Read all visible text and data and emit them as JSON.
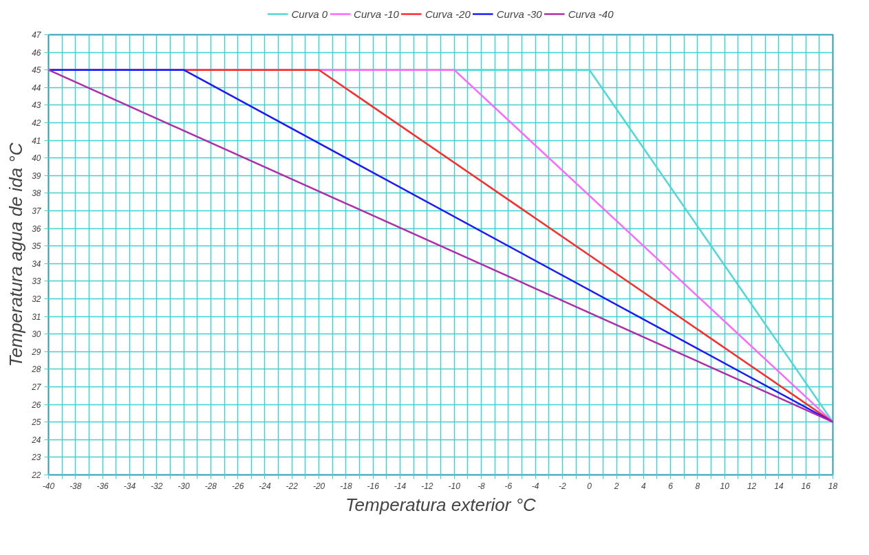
{
  "chart_data": {
    "type": "line",
    "xlabel": "Temperatura exterior °C",
    "ylabel": "Temperatura agua de ida °C",
    "series": [
      {
        "name": "Curva 0",
        "color": "#4fd8d8",
        "x": [
          -40,
          0,
          18
        ],
        "values": [
          45,
          45,
          25
        ]
      },
      {
        "name": "Curva -10",
        "color": "#ff66ff",
        "x": [
          -40,
          -10,
          18
        ],
        "values": [
          45,
          45,
          25
        ]
      },
      {
        "name": "Curva -20",
        "color": "#ff2a2a",
        "x": [
          -40,
          -20,
          18
        ],
        "values": [
          45,
          45,
          25
        ]
      },
      {
        "name": "Curva -30",
        "color": "#1a1aff",
        "x": [
          -40,
          -30,
          18
        ],
        "values": [
          45,
          45,
          25
        ]
      },
      {
        "name": "Curva -40",
        "color": "#b02ca8",
        "x": [
          -40,
          18
        ],
        "values": [
          45,
          25
        ]
      }
    ],
    "xlim": [
      -40,
      18
    ],
    "ylim": [
      22,
      47
    ],
    "xticks": [
      -40,
      {
        "value": -39,
        "label": null
      },
      -38,
      {
        "value": -37,
        "label": null
      },
      -36,
      {
        "value": -35,
        "label": null
      },
      -34,
      {
        "value": -33,
        "label": null
      },
      -32,
      {
        "value": -31,
        "label": null
      },
      -30,
      {
        "value": -29,
        "label": null
      },
      -28,
      {
        "value": -27,
        "label": null
      },
      -26,
      {
        "value": -25,
        "label": null
      },
      -24,
      {
        "value": -23,
        "label": null
      },
      -22,
      {
        "value": -21,
        "label": null
      },
      -20,
      {
        "value": -19,
        "label": null
      },
      -18,
      {
        "value": -17,
        "label": null
      },
      -16,
      {
        "value": -15,
        "label": null
      },
      -14,
      {
        "value": -13,
        "label": null
      },
      -12,
      {
        "value": -11,
        "label": null
      },
      -10,
      {
        "value": -9,
        "label": null
      },
      -8,
      {
        "value": -7,
        "label": null
      },
      -6,
      {
        "value": -5,
        "label": null
      },
      -4,
      {
        "value": -3,
        "label": null
      },
      -2,
      {
        "value": -1,
        "label": null
      },
      0,
      {
        "value": 1,
        "label": null
      },
      2,
      {
        "value": 3,
        "label": null
      },
      4,
      {
        "value": 5,
        "label": null
      },
      6,
      {
        "value": 7,
        "label": null
      },
      8,
      {
        "value": 9,
        "label": null
      },
      10,
      {
        "value": 11,
        "label": null
      },
      12,
      {
        "value": 13,
        "label": null
      },
      14,
      {
        "value": 15,
        "label": null
      },
      16,
      {
        "value": 17,
        "label": null
      },
      18
    ],
    "yticks": [
      22,
      23,
      24,
      25,
      26,
      27,
      28,
      29,
      30,
      31,
      32,
      33,
      34,
      35,
      36,
      37,
      38,
      39,
      40,
      41,
      42,
      43,
      44,
      45,
      46,
      47
    ],
    "grid": true,
    "legend": "top",
    "marker": "none",
    "line_style": "solid"
  }
}
